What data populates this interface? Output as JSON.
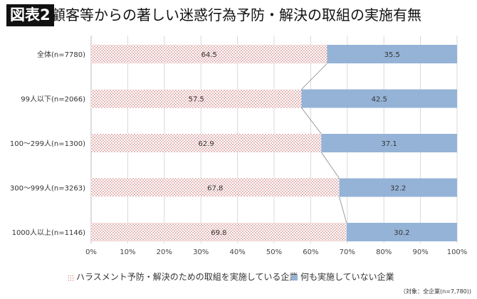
{
  "header": {
    "badge": "図表2",
    "title": "顧客等からの著しい迷惑行為予防・解決の取組の実施有無"
  },
  "note": "（対象：全企業(n=7,780))",
  "colors": {
    "implemented": "#c0504d",
    "not_implemented": "#95b3d7"
  },
  "chart_data": {
    "type": "bar",
    "orientation": "horizontal",
    "stacked": true,
    "categories": [
      "全体(n=7780)",
      "99人以下(n=2066)",
      "100～299人(n=1300)",
      "300～999人(n=3263)",
      "1000人以上(n=1146)"
    ],
    "series": [
      {
        "name": "ハラスメント予防・解決のための取組を実施している企業",
        "values": [
          64.5,
          57.5,
          62.9,
          67.8,
          69.8
        ],
        "pattern": "dotted"
      },
      {
        "name": "何も実施していない企業",
        "values": [
          35.5,
          42.5,
          37.1,
          32.2,
          30.2
        ],
        "pattern": "solid"
      }
    ],
    "xlim": [
      0,
      100
    ],
    "xticks": [
      "0%",
      "10%",
      "20%",
      "30%",
      "40%",
      "50%",
      "60%",
      "70%",
      "80%",
      "90%",
      "100%"
    ],
    "grid": "vertical",
    "series_lines": true,
    "legend": "bottom"
  }
}
